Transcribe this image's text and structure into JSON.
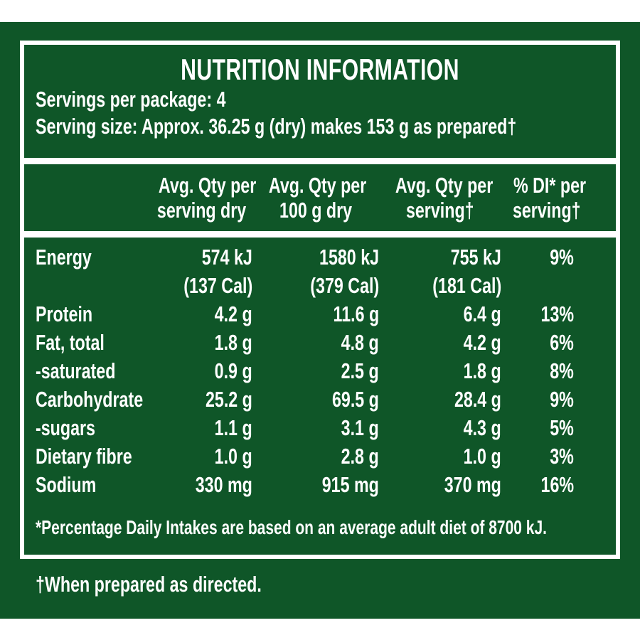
{
  "colors": {
    "panel_green": "#0f5628",
    "text_white": "#ffffff",
    "page_background": "#ffffff"
  },
  "label": {
    "title": "NUTRITION INFORMATION",
    "servings_per_package": "Servings per package: 4",
    "serving_size": "Serving size: Approx. 36.25 g (dry) makes 153 g as prepared†"
  },
  "table": {
    "column_headers": [
      {
        "line1": "Avg. Qty per",
        "line2": "serving dry"
      },
      {
        "line1": "Avg. Qty per",
        "line2": "100 g dry"
      },
      {
        "line1": "Avg. Qty per",
        "line2": "serving†"
      },
      {
        "line1": "% DI* per",
        "line2": "serving†"
      }
    ],
    "rows": [
      {
        "label": "Energy",
        "serving_dry": "574 kJ",
        "per_100g_dry": "1580 kJ",
        "serving_prepared": "755 kJ",
        "daily_intake": "9%"
      },
      {
        "label": "",
        "serving_dry": "(137 Cal)",
        "per_100g_dry": "(379 Cal)",
        "serving_prepared": "(181 Cal)",
        "daily_intake": ""
      },
      {
        "label": "Protein",
        "serving_dry": "4.2 g",
        "per_100g_dry": "11.6 g",
        "serving_prepared": "6.4 g",
        "daily_intake": "13%"
      },
      {
        "label": "Fat, total",
        "serving_dry": "1.8 g",
        "per_100g_dry": "4.8 g",
        "serving_prepared": "4.2 g",
        "daily_intake": "6%"
      },
      {
        "label": "-saturated",
        "serving_dry": "0.9 g",
        "per_100g_dry": "2.5 g",
        "serving_prepared": "1.8 g",
        "daily_intake": "8%"
      },
      {
        "label": "Carbohydrate",
        "serving_dry": "25.2 g",
        "per_100g_dry": "69.5 g",
        "serving_prepared": "28.4 g",
        "daily_intake": "9%"
      },
      {
        "label": "-sugars",
        "serving_dry": "1.1 g",
        "per_100g_dry": "3.1 g",
        "serving_prepared": "4.3 g",
        "daily_intake": "5%"
      },
      {
        "label": "Dietary fibre",
        "serving_dry": "1.0 g",
        "per_100g_dry": "2.8 g",
        "serving_prepared": "1.0 g",
        "daily_intake": "3%"
      },
      {
        "label": "Sodium",
        "serving_dry": "330 mg",
        "per_100g_dry": "915 mg",
        "serving_prepared": "370 mg",
        "daily_intake": "16%"
      }
    ]
  },
  "footnotes": {
    "daily_intake_note": "*Percentage Daily Intakes are based on an average adult diet of 8700 kJ.",
    "prepared_note": "†When prepared as directed."
  }
}
